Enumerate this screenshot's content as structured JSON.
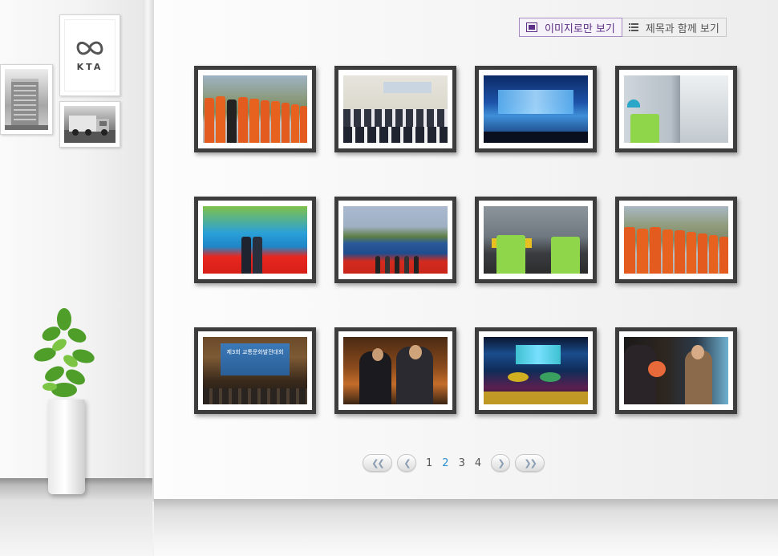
{
  "brand": {
    "logo_text": "KTA"
  },
  "view_toggle": {
    "image_only_label": "이미지로만 보기",
    "with_title_label": "제목과 함께 보기",
    "accent_color": "#5d2f86"
  },
  "gallery": {
    "rows": 3,
    "columns": 4,
    "photos": [
      {
        "icon": "workers-in-orange-vests-photo"
      },
      {
        "icon": "conference-audience-photo"
      },
      {
        "icon": "stage-event-photo"
      },
      {
        "icon": "vehicle-inspection-photo"
      },
      {
        "icon": "award-ceremony-photo"
      },
      {
        "icon": "outdoor-stage-ceremony-photo"
      },
      {
        "icon": "safety-vest-handover-photo"
      },
      {
        "icon": "orange-vest-lineup-photo"
      },
      {
        "icon": "traffic-culture-conference-photo",
        "banner_text": "제3회 교통문화발전대회"
      },
      {
        "icon": "award-presentation-photo"
      },
      {
        "icon": "stage-performance-photo"
      },
      {
        "icon": "flower-bouquet-photo"
      }
    ]
  },
  "pagination": {
    "first_icon": "double-chevron-left-icon",
    "prev_icon": "chevron-left-icon",
    "next_icon": "chevron-right-icon",
    "last_icon": "double-chevron-right-icon",
    "pages": [
      "1",
      "2",
      "3",
      "4"
    ],
    "current_page": "2",
    "current_color": "#2b8fd0"
  }
}
